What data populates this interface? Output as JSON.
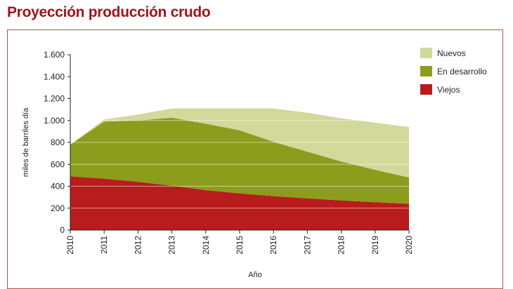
{
  "page": {
    "title": "Proyección producción crudo"
  },
  "chart_data": {
    "type": "area",
    "stacked": true,
    "title": "",
    "xlabel": "Año",
    "ylabel": "miles de barriles día",
    "x": [
      2010,
      2011,
      2012,
      2013,
      2014,
      2015,
      2016,
      2017,
      2018,
      2019,
      2020
    ],
    "x_tick_labels": [
      "2010",
      "2011",
      "2012",
      "2013",
      "2014",
      "2015",
      "2016",
      "2017",
      "2018",
      "2019",
      "2020"
    ],
    "ylim": [
      0,
      1600
    ],
    "y_ticks": [
      0,
      200,
      400,
      600,
      800,
      1000,
      1200,
      1400,
      1600
    ],
    "y_tick_labels": [
      "0",
      "200",
      "400",
      "600",
      "800",
      "1.000",
      "1.200",
      "1.400",
      "1.600"
    ],
    "grid": true,
    "legend_position": "top-right",
    "series": [
      {
        "name": "Viejos",
        "color": "#b81c1c",
        "values": [
          490,
          470,
          440,
          405,
          365,
          335,
          310,
          290,
          270,
          255,
          240
        ]
      },
      {
        "name": "En desarrollo",
        "color": "#8c9c1c",
        "values": [
          290,
          520,
          560,
          620,
          605,
          575,
          495,
          425,
          355,
          295,
          240
        ]
      },
      {
        "name": "Nuevos",
        "color": "#d2d99a",
        "values": [
          0,
          20,
          55,
          85,
          140,
          200,
          305,
          355,
          395,
          430,
          460
        ]
      }
    ],
    "legend_order": [
      "Nuevos",
      "En desarrollo",
      "Viejos"
    ]
  }
}
